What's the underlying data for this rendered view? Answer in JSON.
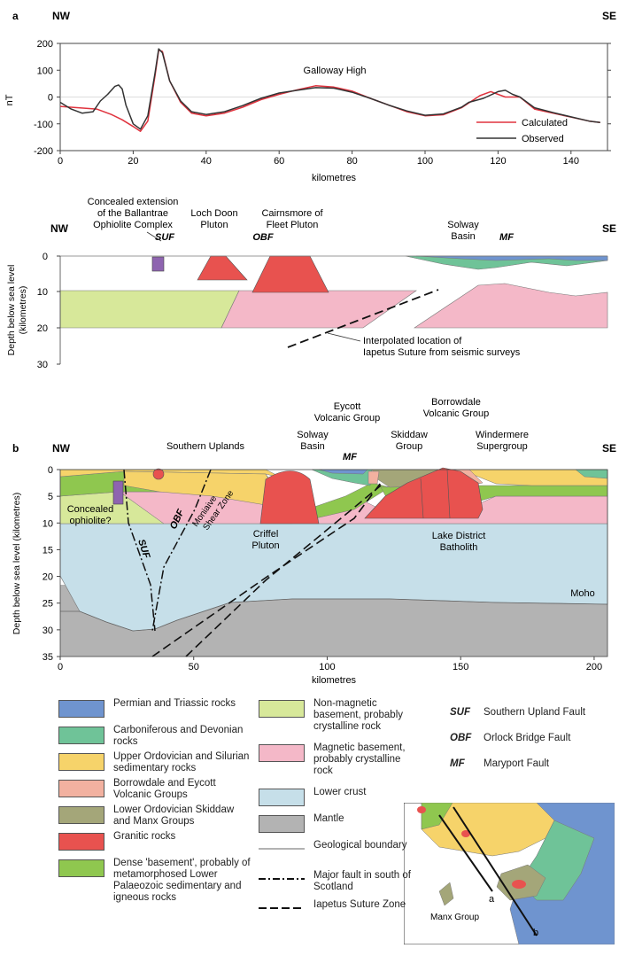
{
  "panel_a": {
    "label": "a",
    "nw": "NW",
    "se": "SE",
    "y_axis_label": "nT",
    "x_axis_label": "kilometres",
    "title_annotation": "Galloway High",
    "legend_calculated": "Calculated",
    "legend_observed": "Observed"
  },
  "chart_data": {
    "type": "line",
    "title": "",
    "xlabel": "kilometres",
    "ylabel": "nT",
    "xlim": [
      0,
      150
    ],
    "ylim": [
      -200,
      200
    ],
    "x_ticks": [
      "0",
      "20",
      "40",
      "60",
      "80",
      "100",
      "120",
      "140"
    ],
    "y_ticks": [
      "200",
      "100",
      "0",
      "-100",
      "-200"
    ],
    "annotation": "Galloway High",
    "series": [
      {
        "name": "Calculated",
        "color": "#e0333e",
        "x": [
          0,
          5,
          10,
          14,
          17,
          20,
          22,
          24,
          26,
          27,
          28,
          30,
          33,
          36,
          40,
          45,
          50,
          55,
          60,
          65,
          70,
          75,
          80,
          85,
          90,
          95,
          100,
          105,
          110,
          115,
          118,
          122,
          126,
          130,
          135,
          140,
          145,
          148
        ],
        "y": [
          -35,
          -40,
          -45,
          -65,
          -85,
          -110,
          -128,
          -90,
          80,
          175,
          170,
          60,
          -20,
          -60,
          -70,
          -60,
          -38,
          -10,
          10,
          27,
          42,
          37,
          22,
          -5,
          -30,
          -55,
          -70,
          -66,
          -40,
          5,
          20,
          0,
          0,
          -45,
          -60,
          -75,
          -90,
          -95
        ]
      },
      {
        "name": "Observed",
        "color": "#333333",
        "x": [
          0,
          3,
          6,
          9,
          11,
          13,
          15,
          16,
          17,
          18,
          20,
          22,
          24,
          26,
          27,
          28,
          30,
          33,
          36,
          40,
          45,
          50,
          55,
          60,
          65,
          70,
          75,
          80,
          85,
          90,
          95,
          100,
          105,
          110,
          112,
          116,
          120,
          122,
          124,
          126,
          130,
          135,
          140,
          145,
          148
        ],
        "y": [
          -20,
          -45,
          -60,
          -55,
          -15,
          10,
          40,
          45,
          30,
          -30,
          -100,
          -120,
          -70,
          90,
          180,
          165,
          60,
          -15,
          -55,
          -65,
          -55,
          -32,
          -5,
          15,
          25,
          35,
          33,
          18,
          -5,
          -30,
          -52,
          -68,
          -63,
          -38,
          -20,
          -5,
          20,
          25,
          10,
          0,
          -40,
          -58,
          -74,
          -90,
          -95
        ]
      }
    ]
  },
  "section_top": {
    "nw": "NW",
    "se": "SE",
    "y_axis_label": "Depth below sea level (kilometres)",
    "y_ticks": [
      "0",
      "10",
      "20",
      "30"
    ],
    "label_ophiolite_1": "Concealed extension",
    "label_ophiolite_2": "of the Ballantrae",
    "label_ophiolite_3": "Ophiolite Complex",
    "label_loch_1": "Loch Doon",
    "label_loch_2": "Pluton",
    "label_cairn_1": "Cairnsmore of",
    "label_cairn_2": "Fleet Pluton",
    "label_solway_1": "Solway",
    "label_solway_2": "Basin",
    "suf": "SUF",
    "obf": "OBF",
    "mf": "MF",
    "label_iapetus_1": "Interpolated location of",
    "label_iapetus_2": "Iapetus Suture from seismic surveys"
  },
  "panel_b": {
    "label": "b",
    "nw": "NW",
    "se": "SE",
    "y_axis_label": "Depth below sea level (kilometres)",
    "x_axis_label": "kilometres",
    "x_ticks": [
      "0",
      "50",
      "100",
      "150",
      "200"
    ],
    "y_ticks": [
      "0",
      "5",
      "10",
      "15",
      "20",
      "25",
      "30",
      "35"
    ],
    "label_southern_uplands": "Southern Uplands",
    "label_solway_1": "Solway",
    "label_solway_2": "Basin",
    "label_eycott_1": "Eycott",
    "label_eycott_2": "Volcanic Group",
    "label_borrow_1": "Borrowdale",
    "label_borrow_2": "Volcanic Group",
    "label_skiddaw_1": "Skiddaw",
    "label_skiddaw_2": "Group",
    "label_winder_1": "Windermere",
    "label_winder_2": "Supergroup",
    "mf": "MF",
    "suf": "SUF",
    "obf": "OBF",
    "label_concealed_1": "Concealed",
    "label_concealed_2": "ophiolite?",
    "label_moniaive_1": "Moniaive",
    "label_moniaive_2": "Shear Zone",
    "label_criffel_1": "Criffel",
    "label_criffel_2": "Pluton",
    "label_lake_1": "Lake District",
    "label_lake_2": "Batholith",
    "label_moho": "Moho"
  },
  "legend": {
    "items": [
      {
        "text": "Permian and Triassic rocks",
        "color": "#6f94cf"
      },
      {
        "text": "Carboniferous and Devonian rocks",
        "color": "#6fc398"
      },
      {
        "text": "Upper Ordovician and Silurian sedimentary rocks",
        "color": "#f6d36a"
      },
      {
        "text": "Borrowdale and Eycott Volcanic Groups",
        "color": "#f2b1a0"
      },
      {
        "text": "Lower Ordovician Skiddaw and Manx Groups",
        "color": "#a4a679"
      },
      {
        "text": "Granitic rocks",
        "color": "#e8524f"
      },
      {
        "text": "Dense 'basement', probably of metamorphosed Lower Palaeozoic sedimentary and igneous rocks",
        "color": "#8fc74f"
      },
      {
        "text": "Non-magnetic basement, probably crystalline rock",
        "color": "#d7e89a"
      },
      {
        "text": "Magnetic basement, probably crystalline rock",
        "color": "#f4b8c8"
      },
      {
        "text": "Lower crust",
        "color": "#c6dfe9"
      },
      {
        "text": "Mantle",
        "color": "#b3b3b3"
      },
      {
        "text": "Geological boundary",
        "color": "#888888"
      },
      {
        "text": "Major fault in south of Scotland",
        "color": "#000000"
      },
      {
        "text": "Iapetus Suture Zone",
        "color": "#000000"
      }
    ],
    "abbrevs": [
      {
        "abbr": "SUF",
        "text": "Southern Upland Fault"
      },
      {
        "abbr": "OBF",
        "text": "Orlock Bridge Fault"
      },
      {
        "abbr": "MF",
        "text": "Maryport Fault"
      }
    ]
  },
  "inset_map": {
    "label_a": "a",
    "label_b": "b",
    "label_manx": "Manx Group"
  }
}
